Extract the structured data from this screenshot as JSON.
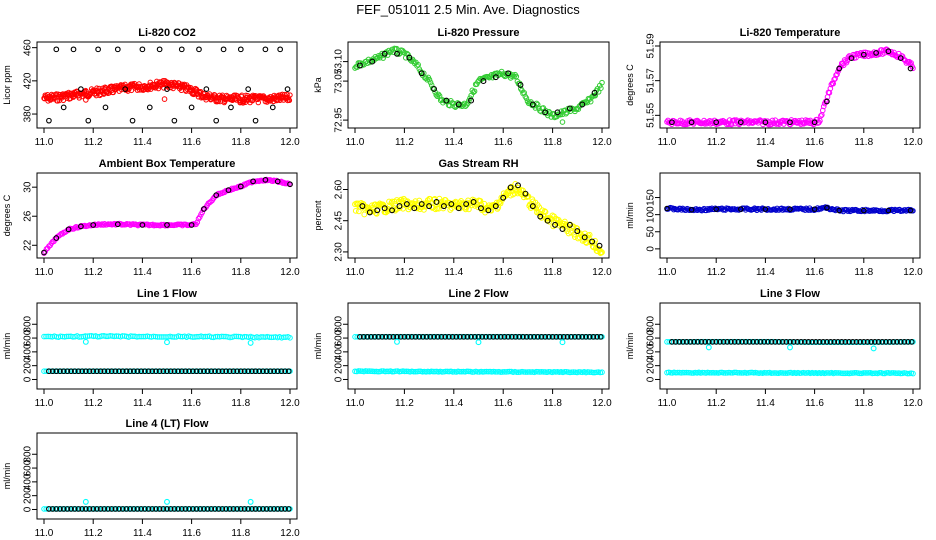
{
  "supertitle": "FEF_051011  2.5 Min. Ave. Diagnostics",
  "chart_data": [
    {
      "id": "co2",
      "type": "scatter",
      "title": "Li-820 CO2",
      "ylabel": "Licor ppm",
      "xlim": [
        11.0,
        12.0
      ],
      "ylim": [
        368,
        462
      ],
      "yticks": [
        "380",
        "420",
        "460"
      ],
      "xticks": [
        "11.0",
        "11.2",
        "11.4",
        "11.6",
        "11.8",
        "12.0"
      ],
      "colors": {
        "fine": "#ff0000",
        "avg": "#000000"
      },
      "fine": {
        "x": [
          11.0,
          11.05,
          11.1,
          11.15,
          11.2,
          11.25,
          11.3,
          11.35,
          11.4,
          11.45,
          11.5,
          11.55,
          11.6,
          11.65,
          11.7,
          11.75,
          11.8,
          11.85,
          11.9,
          11.95,
          12.0
        ],
        "y": [
          399,
          400,
          402,
          404,
          406,
          408,
          410,
          412,
          413,
          415,
          416,
          413,
          409,
          402,
          399,
          398,
          398,
          398,
          398,
          399,
          399
        ]
      },
      "avg": {
        "x": [
          11.02,
          11.05,
          11.08,
          11.12,
          11.15,
          11.18,
          11.22,
          11.25,
          11.3,
          11.33,
          11.36,
          11.4,
          11.43,
          11.47,
          11.5,
          11.53,
          11.56,
          11.6,
          11.63,
          11.66,
          11.7,
          11.73,
          11.76,
          11.8,
          11.83,
          11.86,
          11.9,
          11.93,
          11.96,
          11.99
        ],
        "y": [
          372,
          458,
          388,
          458,
          410,
          372,
          458,
          388,
          458,
          410,
          372,
          458,
          388,
          458,
          410,
          372,
          458,
          388,
          458,
          410,
          372,
          458,
          388,
          458,
          410,
          372,
          458,
          388,
          458,
          410
        ]
      }
    },
    {
      "id": "pressure",
      "type": "scatter",
      "title": "Li-820 Pressure",
      "ylabel": "kPa",
      "xlim": [
        11.0,
        12.0
      ],
      "ylim": [
        72.94,
        73.14
      ],
      "yticks": [
        "72.95",
        "73.05",
        "73.10"
      ],
      "xticks": [
        "11.0",
        "11.2",
        "11.4",
        "11.6",
        "11.8",
        "12.0"
      ],
      "colors": {
        "fine": "#33cc33",
        "avg": "#000000"
      },
      "fine": {
        "x": [
          11.0,
          11.05,
          11.1,
          11.15,
          11.2,
          11.25,
          11.3,
          11.35,
          11.4,
          11.45,
          11.5,
          11.55,
          11.6,
          11.65,
          11.7,
          11.75,
          11.8,
          11.85,
          11.9,
          11.95,
          12.0
        ],
        "y": [
          73.09,
          73.1,
          73.11,
          73.13,
          73.12,
          73.09,
          73.05,
          73.0,
          72.99,
          72.99,
          73.05,
          73.06,
          73.07,
          73.06,
          73.0,
          72.98,
          72.96,
          72.97,
          72.98,
          73.0,
          73.04
        ]
      },
      "avg": {
        "x": [
          11.02,
          11.07,
          11.12,
          11.17,
          11.22,
          11.27,
          11.32,
          11.37,
          11.42,
          11.47,
          11.52,
          11.57,
          11.62,
          11.67,
          11.72,
          11.77,
          11.82,
          11.87,
          11.92,
          11.97
        ],
        "y": [
          73.09,
          73.1,
          73.12,
          73.12,
          73.11,
          73.07,
          73.03,
          73.0,
          72.99,
          73.0,
          73.05,
          73.06,
          73.07,
          73.04,
          72.99,
          72.97,
          72.97,
          72.98,
          72.99,
          73.02
        ]
      }
    },
    {
      "id": "li_temp",
      "type": "scatter",
      "title": "Li-820 Temperature",
      "ylabel": "degrees C",
      "xlim": [
        11.0,
        12.0
      ],
      "ylim": [
        51.545,
        51.59
      ],
      "yticks": [
        "51.55",
        "51.57",
        "51.59"
      ],
      "xticks": [
        "11.0",
        "11.2",
        "11.4",
        "11.6",
        "11.8",
        "12.0"
      ],
      "colors": {
        "fine": "#ff00ff",
        "avg": "#000000"
      },
      "fine": {
        "x": [
          11.0,
          11.1,
          11.2,
          11.3,
          11.4,
          11.5,
          11.6,
          11.62,
          11.65,
          11.7,
          11.75,
          11.8,
          11.85,
          11.9,
          11.95,
          12.0
        ],
        "y": [
          51.546,
          51.546,
          51.546,
          51.546,
          51.546,
          51.546,
          51.546,
          51.547,
          51.56,
          51.578,
          51.584,
          51.585,
          51.586,
          51.587,
          51.584,
          51.578
        ]
      },
      "avg": {
        "x": [
          11.02,
          11.1,
          11.2,
          11.3,
          11.4,
          11.5,
          11.6,
          11.65,
          11.7,
          11.75,
          11.8,
          11.85,
          11.9,
          11.95,
          11.99
        ],
        "y": [
          51.546,
          51.546,
          51.546,
          51.546,
          51.546,
          51.546,
          51.546,
          51.558,
          51.577,
          51.583,
          51.585,
          51.586,
          51.587,
          51.583,
          51.577
        ]
      }
    },
    {
      "id": "box_temp",
      "type": "scatter",
      "title": "Ambient Box Temperature",
      "ylabel": "degrees C",
      "xlim": [
        11.0,
        12.0
      ],
      "ylim": [
        20.8,
        31.4
      ],
      "yticks": [
        "22",
        "26",
        "30"
      ],
      "xticks": [
        "11.0",
        "11.2",
        "11.4",
        "11.6",
        "11.8",
        "12.0"
      ],
      "colors": {
        "fine": "#ff00ff",
        "avg": "#000000"
      },
      "fine": {
        "x": [
          11.0,
          11.05,
          11.1,
          11.15,
          11.2,
          11.25,
          11.3,
          11.4,
          11.5,
          11.6,
          11.62,
          11.65,
          11.7,
          11.75,
          11.8,
          11.85,
          11.9,
          11.95,
          12.0
        ],
        "y": [
          21.0,
          23.0,
          24.2,
          24.6,
          24.8,
          24.9,
          24.9,
          24.8,
          24.8,
          24.8,
          25.0,
          27.0,
          28.9,
          29.6,
          30.1,
          30.8,
          31.0,
          30.8,
          30.4
        ]
      },
      "avg": {
        "x": [
          11.0,
          11.05,
          11.1,
          11.15,
          11.2,
          11.3,
          11.4,
          11.5,
          11.6,
          11.65,
          11.7,
          11.75,
          11.8,
          11.85,
          11.9,
          11.95,
          12.0
        ],
        "y": [
          21.0,
          23.0,
          24.2,
          24.6,
          24.8,
          24.9,
          24.8,
          24.8,
          24.8,
          27.0,
          28.9,
          29.6,
          30.1,
          30.8,
          31.0,
          30.8,
          30.4
        ]
      }
    },
    {
      "id": "rh",
      "type": "scatter",
      "title": "Gas Stream RH",
      "ylabel": "percent",
      "xlim": [
        11.0,
        12.0
      ],
      "ylim": [
        2.29,
        2.66
      ],
      "yticks": [
        "2.30",
        "2.45",
        "2.60"
      ],
      "xticks": [
        "11.0",
        "11.2",
        "11.4",
        "11.6",
        "11.8",
        "12.0"
      ],
      "colors": {
        "fine": "#ffff00",
        "avg": "#000000"
      },
      "fine": {
        "x": [
          11.0,
          11.05,
          11.1,
          11.15,
          11.2,
          11.25,
          11.3,
          11.35,
          11.4,
          11.45,
          11.5,
          11.55,
          11.6,
          11.65,
          11.7,
          11.75,
          11.8,
          11.85,
          11.9,
          11.95,
          12.0
        ],
        "y": [
          2.52,
          2.5,
          2.51,
          2.52,
          2.53,
          2.52,
          2.53,
          2.53,
          2.52,
          2.53,
          2.53,
          2.5,
          2.56,
          2.61,
          2.55,
          2.49,
          2.45,
          2.42,
          2.39,
          2.36,
          2.3
        ]
      },
      "avg": {
        "x": [
          11.03,
          11.06,
          11.09,
          11.12,
          11.15,
          11.18,
          11.21,
          11.24,
          11.27,
          11.3,
          11.33,
          11.36,
          11.39,
          11.42,
          11.45,
          11.48,
          11.51,
          11.54,
          11.57,
          11.6,
          11.63,
          11.66,
          11.69,
          11.72,
          11.75,
          11.78,
          11.81,
          11.84,
          11.87,
          11.9,
          11.93,
          11.96,
          11.99
        ],
        "y": [
          2.52,
          2.49,
          2.5,
          2.51,
          2.5,
          2.52,
          2.53,
          2.51,
          2.53,
          2.52,
          2.54,
          2.52,
          2.53,
          2.51,
          2.53,
          2.54,
          2.51,
          2.5,
          2.52,
          2.56,
          2.61,
          2.62,
          2.58,
          2.52,
          2.47,
          2.45,
          2.43,
          2.41,
          2.43,
          2.4,
          2.37,
          2.35,
          2.33
        ]
      }
    },
    {
      "id": "sample_flow",
      "type": "scatter",
      "title": "Sample Flow",
      "ylabel": "ml/min",
      "xlim": [
        11.0,
        12.0
      ],
      "ylim": [
        -15,
        210
      ],
      "yticks": [
        "0",
        "50",
        "100",
        "150"
      ],
      "xticks": [
        "11.0",
        "11.2",
        "11.4",
        "11.6",
        "11.8",
        "12.0"
      ],
      "colors": {
        "fine": "#0000cc",
        "avg": "#000000"
      },
      "fine": {
        "x": [
          11.0,
          11.1,
          11.2,
          11.3,
          11.4,
          11.5,
          11.6,
          11.62,
          11.65,
          11.7,
          11.8,
          11.9,
          12.0
        ],
        "y": [
          118,
          114,
          116,
          116,
          116,
          116,
          116,
          118,
          120,
          112,
          112,
          112,
          112
        ]
      },
      "avg": {
        "x": [
          11.0,
          11.1,
          11.2,
          11.3,
          11.4,
          11.5,
          11.6,
          11.65,
          11.7,
          11.8,
          11.9,
          11.99
        ],
        "y": [
          118,
          114,
          116,
          116,
          116,
          116,
          116,
          120,
          112,
          112,
          112,
          112
        ]
      }
    },
    {
      "id": "line1",
      "type": "scatter",
      "title": "Line 1 Flow",
      "ylabel": "ml/min",
      "xlim": [
        11.0,
        12.0
      ],
      "ylim": [
        -80,
        1050
      ],
      "yticks": [
        "0",
        "200",
        "400",
        "600",
        "800"
      ],
      "xticks": [
        "11.0",
        "11.2",
        "11.4",
        "11.6",
        "11.8",
        "12.0"
      ],
      "colors": {
        "fine": "#00ffff",
        "avg": "#000000"
      },
      "fine": {
        "x": [
          11.0,
          11.2,
          11.4,
          11.6,
          11.8,
          12.0
        ],
        "y": [
          620,
          625,
          622,
          620,
          615,
          610
        ]
      },
      "low": {
        "x": [
          11.0,
          12.0
        ],
        "y": [
          120,
          120
        ]
      },
      "avg": {
        "x": [
          11.02,
          11.99
        ],
        "y": [
          120,
          120
        ]
      },
      "outliers": {
        "x": [
          11.17,
          11.5,
          11.84
        ],
        "y": [
          545,
          540,
          530
        ]
      }
    },
    {
      "id": "line2",
      "type": "scatter",
      "title": "Line 2 Flow",
      "ylabel": "ml/min",
      "xlim": [
        11.0,
        12.0
      ],
      "ylim": [
        -80,
        1050
      ],
      "yticks": [
        "0",
        "200",
        "400",
        "600",
        "800"
      ],
      "xticks": [
        "11.0",
        "11.2",
        "11.4",
        "11.6",
        "11.8",
        "12.0"
      ],
      "colors": {
        "fine": "#00ffff",
        "avg": "#000000"
      },
      "fine": {
        "x": [
          11.0,
          11.2,
          11.4,
          11.6,
          11.8,
          12.0
        ],
        "y": [
          618,
          620,
          620,
          620,
          618,
          618
        ]
      },
      "low": {
        "x": [
          11.0,
          12.0
        ],
        "y": [
          120,
          105
        ]
      },
      "avg": {
        "x": [
          11.02,
          11.99
        ],
        "y": [
          618,
          618
        ]
      },
      "outliers": {
        "x": [
          11.17,
          11.5,
          11.84
        ],
        "y": [
          545,
          540,
          540
        ]
      }
    },
    {
      "id": "line3",
      "type": "scatter",
      "title": "Line 3 Flow",
      "ylabel": "ml/min",
      "xlim": [
        11.0,
        12.0
      ],
      "ylim": [
        -80,
        1050
      ],
      "yticks": [
        "0",
        "200",
        "400",
        "600",
        "800"
      ],
      "xticks": [
        "11.0",
        "11.2",
        "11.4",
        "11.6",
        "11.8",
        "12.0"
      ],
      "colors": {
        "fine": "#00ffff",
        "avg": "#000000"
      },
      "fine": {
        "x": [
          11.0,
          11.2,
          11.4,
          11.6,
          11.8,
          12.0
        ],
        "y": [
          545,
          548,
          548,
          540,
          540,
          545
        ]
      },
      "low": {
        "x": [
          11.0,
          12.0
        ],
        "y": [
          100,
          90
        ]
      },
      "avg": {
        "x": [
          11.02,
          11.99
        ],
        "y": [
          545,
          545
        ]
      },
      "outliers": {
        "x": [
          11.17,
          11.5,
          11.84
        ],
        "y": [
          465,
          465,
          450
        ]
      }
    },
    {
      "id": "line4",
      "type": "scatter",
      "title": "Line 4 (LT) Flow",
      "ylabel": "ml/min",
      "xlim": [
        11.0,
        12.0
      ],
      "ylim": [
        -80,
        1050
      ],
      "yticks": [
        "0",
        "200",
        "400",
        "600",
        "800"
      ],
      "xticks": [
        "11.0",
        "11.2",
        "11.4",
        "11.6",
        "11.8",
        "12.0"
      ],
      "colors": {
        "fine": "#00ffff",
        "avg": "#000000"
      },
      "fine": {
        "x": [
          11.0,
          12.0
        ],
        "y": [
          8,
          8
        ]
      },
      "avg": {
        "x": [
          11.02,
          11.99
        ],
        "y": [
          8,
          8
        ]
      },
      "outliers": {
        "x": [
          11.17,
          11.5,
          11.84
        ],
        "y": [
          110,
          110,
          110
        ]
      }
    }
  ]
}
